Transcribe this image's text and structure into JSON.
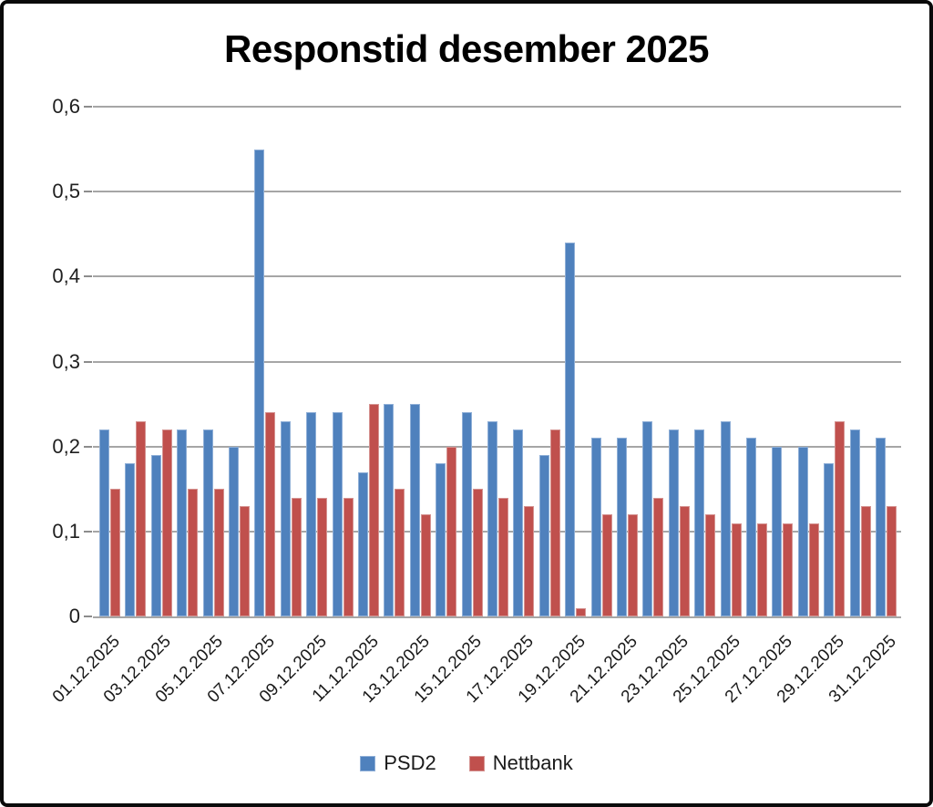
{
  "chart_data": {
    "type": "bar",
    "title": "Responstid desember 2025",
    "categories": [
      "01.12.2025",
      "02.12.2025",
      "03.12.2025",
      "04.12.2025",
      "05.12.2025",
      "06.12.2025",
      "07.12.2025",
      "08.12.2025",
      "09.12.2025",
      "10.12.2025",
      "11.12.2025",
      "12.12.2025",
      "13.12.2025",
      "14.12.2025",
      "15.12.2025",
      "16.12.2025",
      "17.12.2025",
      "18.12.2025",
      "19.12.2025",
      "20.12.2025",
      "21.12.2025",
      "22.12.2025",
      "23.12.2025",
      "24.12.2025",
      "25.12.2025",
      "26.12.2025",
      "27.12.2025",
      "28.12.2025",
      "29.12.2025",
      "30.12.2025",
      "31.12.2025"
    ],
    "x_tick_every": 2,
    "series": [
      {
        "name": "PSD2",
        "color": "#4F81BD",
        "edge_color": "#8FAFD7",
        "values": [
          0.22,
          0.18,
          0.19,
          0.22,
          0.22,
          0.2,
          0.55,
          0.23,
          0.24,
          0.24,
          0.17,
          0.25,
          0.25,
          0.18,
          0.24,
          0.23,
          0.22,
          0.19,
          0.44,
          0.21,
          0.21,
          0.23,
          0.22,
          0.22,
          0.23,
          0.21,
          0.2,
          0.2,
          0.18,
          0.22,
          0.21
        ]
      },
      {
        "name": "Nettbank",
        "color": "#C0504D",
        "edge_color": "#D59391",
        "values": [
          0.15,
          0.23,
          0.22,
          0.15,
          0.15,
          0.13,
          0.24,
          0.14,
          0.14,
          0.14,
          0.25,
          0.15,
          0.12,
          0.2,
          0.15,
          0.14,
          0.13,
          0.22,
          0.01,
          0.12,
          0.12,
          0.14,
          0.13,
          0.12,
          0.11,
          0.11,
          0.11,
          0.11,
          0.23,
          0.13,
          0.13
        ]
      }
    ],
    "ylim": [
      0,
      0.6
    ],
    "y_tick_labels": [
      "0",
      "0,1",
      "0,2",
      "0,3",
      "0,4",
      "0,5",
      "0,6"
    ],
    "grid": true,
    "legend_position": "bottom"
  },
  "colors": {
    "background": "#FFFFFF",
    "grid": "#A6A6A6",
    "axis": "#A6A6A6",
    "tick": "#8C8C8C",
    "text": "#1A1A1A",
    "frame": "#0A0A0A"
  }
}
